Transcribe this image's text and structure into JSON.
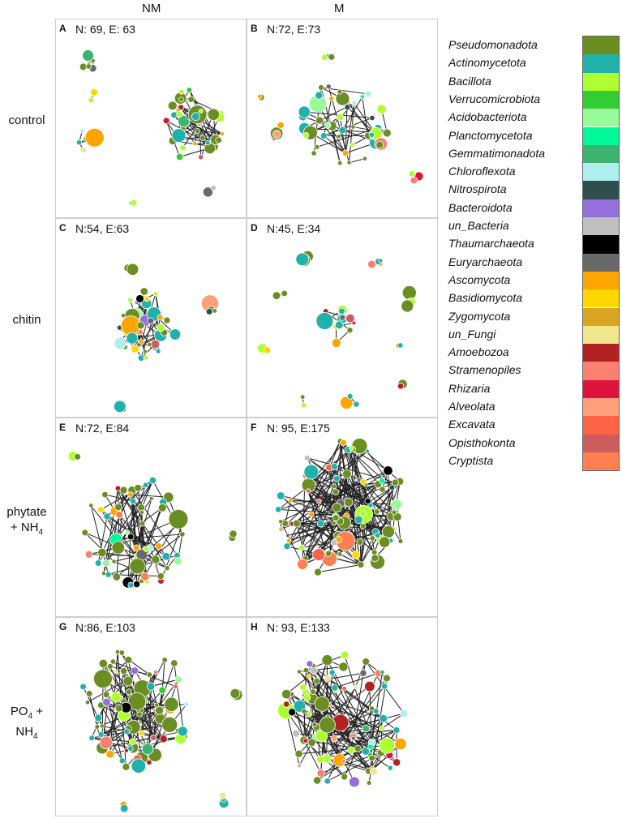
{
  "columns": [
    "NM",
    "M"
  ],
  "rows": [
    {
      "label": "control"
    },
    {
      "label": "chitin"
    },
    {
      "label_main": "phytate",
      "label_line2": "+ NH",
      "label_sub": "4"
    },
    {
      "label_main": "PO",
      "label_main_sub": "4",
      "label_plus": " +",
      "label_line2": "NH",
      "label_sub": "4"
    }
  ],
  "panels": [
    {
      "letter": "A",
      "stats": "N: 69, E: 63"
    },
    {
      "letter": "B",
      "stats": "N:72, E:73"
    },
    {
      "letter": "C",
      "stats": "N:54, E:63"
    },
    {
      "letter": "D",
      "stats": "N:45, E:34"
    },
    {
      "letter": "E",
      "stats": "N:72, E:84"
    },
    {
      "letter": "F",
      "stats": "N: 95, E:175"
    },
    {
      "letter": "G",
      "stats": "N:86, E:103"
    },
    {
      "letter": "H",
      "stats": "N: 93, E:133"
    }
  ],
  "legend": [
    {
      "name": "Pseudomonadota",
      "color": "#6b8e23"
    },
    {
      "name": "Actinomycetota",
      "color": "#20b2aa"
    },
    {
      "name": "Bacillota",
      "color": "#adff2f"
    },
    {
      "name": "Verrucomicrobiota",
      "color": "#32cd32"
    },
    {
      "name": "Acidobacteriota",
      "color": "#98fb98"
    },
    {
      "name": "Planctomycetota",
      "color": "#00fa9a"
    },
    {
      "name": "Gemmatimonadota",
      "color": "#3cb371"
    },
    {
      "name": "Chloroflexota",
      "color": "#afeeee"
    },
    {
      "name": "Nitrospirota",
      "color": "#2f4f4f"
    },
    {
      "name": "Bacteroidota",
      "color": "#9370db"
    },
    {
      "name": "un_Bacteria",
      "color": "#c0c0c0"
    },
    {
      "name": "Thaumarchaeota",
      "color": "#000000"
    },
    {
      "name": "Euryarchaeota",
      "color": "#696969"
    },
    {
      "name": "Ascomycota",
      "color": "#ffa500"
    },
    {
      "name": "Basidiomycota",
      "color": "#ffd700"
    },
    {
      "name": "Zygomycota",
      "color": "#daa520"
    },
    {
      "name": "un_Fungi",
      "color": "#f0e68c"
    },
    {
      "name": "Amoebozoa",
      "color": "#b22222"
    },
    {
      "name": "Stramenopiles",
      "color": "#fa8072"
    },
    {
      "name": "Rhizaria",
      "color": "#dc143c"
    },
    {
      "name": "Alveolata",
      "color": "#ffa07a"
    },
    {
      "name": "Excavata",
      "color": "#ff6347"
    },
    {
      "name": "Opisthokonta",
      "color": "#cd5c5c"
    },
    {
      "name": "Cryptista",
      "color": "#ff7f50"
    }
  ]
}
